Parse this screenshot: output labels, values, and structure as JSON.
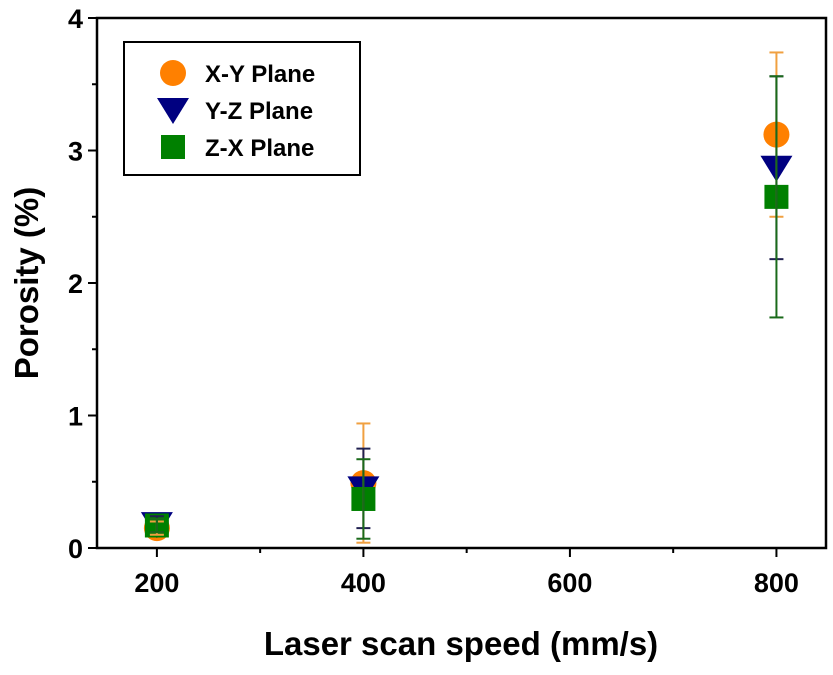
{
  "chart_data": {
    "type": "scatter",
    "title": "",
    "xlabel": "Laser scan speed (mm/s)",
    "ylabel": "Porosity (%)",
    "xlim": [
      142,
      848
    ],
    "ylim": [
      0,
      4
    ],
    "xticks": [
      200,
      400,
      600,
      800
    ],
    "yticks": [
      0,
      1,
      2,
      3,
      4
    ],
    "legend_position": "top-left",
    "grid": false,
    "series": [
      {
        "name": "X-Y Plane",
        "marker": "circle",
        "color": "#ff8000",
        "x": [
          200,
          400,
          800
        ],
        "y": [
          0.15,
          0.49,
          3.12
        ],
        "err": [
          0.05,
          0.45,
          0.62
        ]
      },
      {
        "name": "Y-Z Plane",
        "marker": "triangle-down",
        "color": "#000080",
        "x": [
          200,
          400,
          800
        ],
        "y": [
          0.18,
          0.45,
          2.87
        ],
        "err": [
          0.06,
          0.3,
          0.69
        ]
      },
      {
        "name": "Z-X Plane",
        "marker": "square",
        "color": "#008000",
        "x": [
          200,
          400,
          800
        ],
        "y": [
          0.17,
          0.37,
          2.65
        ],
        "err": [
          0.05,
          0.3,
          0.91
        ]
      }
    ]
  }
}
